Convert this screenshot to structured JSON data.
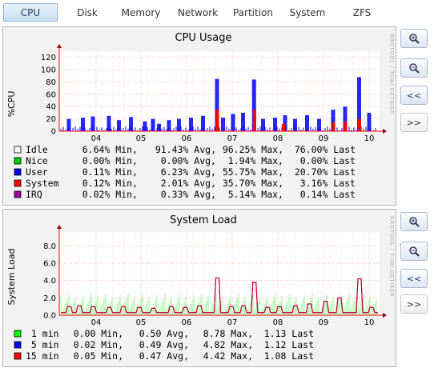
{
  "tabs": [
    {
      "label": "CPU",
      "active": true
    },
    {
      "label": "Disk"
    },
    {
      "label": "Memory"
    },
    {
      "label": "Network"
    },
    {
      "label": "Partition"
    },
    {
      "label": "System"
    },
    {
      "label": "ZFS"
    }
  ],
  "watermark": "RRDTOOL / TOBI OETIKER",
  "side_buttons": [
    {
      "icon": "zoom-in-icon"
    },
    {
      "icon": "zoom-out-icon"
    },
    {
      "label": "<<"
    },
    {
      "label": ">>"
    }
  ],
  "colors": {
    "idle": "#ffffff",
    "nice": "#00cc00",
    "user": "#0000ff",
    "system": "#ff0000",
    "irq": "#a000a0",
    "load1": "#00ff00",
    "load5": "#0000ff",
    "load15": "#ff0000",
    "grid": "#ff9999",
    "axis": "#ff0000"
  },
  "chart_data": [
    {
      "type": "area",
      "title": "CPU Usage",
      "ylabel": "%CPU",
      "ylim": [
        0,
        130
      ],
      "yticks": [
        0,
        20,
        40,
        60,
        80,
        100,
        120
      ],
      "xticks": [
        "04",
        "05",
        "06",
        "07",
        "08",
        "09",
        "10"
      ],
      "legend": [
        {
          "name": "Idle",
          "min": "6.64% Min,",
          "avg": "91.43% Avg,",
          "max": "96.25% Max,",
          "last": "76.00% Last"
        },
        {
          "name": "Nice",
          "min": "0.00% Min,",
          "avg": "0.00% Avg,",
          "max": "1.94% Max,",
          "last": "0.00% Last"
        },
        {
          "name": "User",
          "min": "0.11% Min,",
          "avg": "6.23% Avg,",
          "max": "55.75% Max,",
          "last": "20.70% Last"
        },
        {
          "name": "System",
          "min": "0.12% Min,",
          "avg": "2.01% Avg,",
          "max": "35.70% Max,",
          "last": "3.16% Last"
        },
        {
          "name": "IRQ",
          "min": "0.02% Min,",
          "avg": "0.33% Avg,",
          "max": "5.14% Max,",
          "last": "0.14% Last"
        }
      ],
      "series_user_spikes": [
        [
          0.05,
          20
        ],
        [
          0.12,
          22
        ],
        [
          0.17,
          24
        ],
        [
          0.25,
          25
        ],
        [
          0.3,
          18
        ],
        [
          0.36,
          23
        ],
        [
          0.43,
          16
        ],
        [
          0.47,
          20
        ],
        [
          0.5,
          12
        ],
        [
          0.55,
          18
        ],
        [
          0.6,
          20
        ],
        [
          0.66,
          22
        ],
        [
          0.72,
          25
        ],
        [
          0.79,
          85
        ],
        [
          0.82,
          22
        ],
        [
          0.87,
          28
        ],
        [
          0.92,
          30
        ],
        [
          0.975,
          84
        ],
        [
          1.02,
          20
        ],
        [
          1.08,
          22
        ],
        [
          1.13,
          26
        ],
        [
          1.18,
          20
        ],
        [
          1.24,
          26
        ],
        [
          1.3,
          20
        ],
        [
          1.37,
          35
        ],
        [
          1.43,
          40
        ],
        [
          1.5,
          88
        ],
        [
          1.55,
          30
        ]
      ],
      "series_system_spikes": [
        [
          0.79,
          35
        ],
        [
          0.975,
          35
        ],
        [
          1.37,
          14
        ],
        [
          1.43,
          16
        ],
        [
          1.5,
          20
        ],
        [
          1.12,
          12
        ]
      ]
    },
    {
      "type": "line",
      "title": "System Load",
      "ylabel": "System Load",
      "ylim": [
        0,
        9.6
      ],
      "yticks": [
        0.0,
        2.0,
        4.0,
        6.0,
        8.0
      ],
      "ytick_labels": [
        "0.0",
        "2.0",
        "4.0",
        "6.0",
        "8.0"
      ],
      "xticks": [
        "04",
        "05",
        "06",
        "07",
        "08",
        "09",
        "10"
      ],
      "legend": [
        {
          "name": " 1 min",
          "min": "0.00 Min,",
          "avg": "0.50 Avg,",
          "max": "8.78 Max,",
          "last": "1.13 Last"
        },
        {
          "name": " 5 min",
          "min": "0.02 Min,",
          "avg": "0.49 Avg,",
          "max": "4.82 Max,",
          "last": "1.12 Last"
        },
        {
          "name": "15 min",
          "min": "0.05 Min,",
          "avg": "0.47 Avg,",
          "max": "4.42 Max,",
          "last": "1.08 Last"
        }
      ],
      "series_15min_spikes": [
        [
          0.05,
          1.0
        ],
        [
          0.1,
          1.1
        ],
        [
          0.17,
          1.0
        ],
        [
          0.25,
          0.9
        ],
        [
          0.32,
          1.0
        ],
        [
          0.4,
          0.9
        ],
        [
          0.47,
          0.8
        ],
        [
          0.56,
          1.0
        ],
        [
          0.63,
          0.9
        ],
        [
          0.7,
          1.1
        ],
        [
          0.79,
          4.3
        ],
        [
          0.86,
          1.0
        ],
        [
          0.92,
          1.1
        ],
        [
          0.975,
          3.8
        ],
        [
          1.04,
          0.9
        ],
        [
          1.1,
          1.0
        ],
        [
          1.18,
          1.1
        ],
        [
          1.25,
          1.3
        ],
        [
          1.33,
          1.6
        ],
        [
          1.4,
          2.0
        ],
        [
          1.5,
          4.2
        ],
        [
          1.56,
          0.9
        ]
      ]
    }
  ]
}
